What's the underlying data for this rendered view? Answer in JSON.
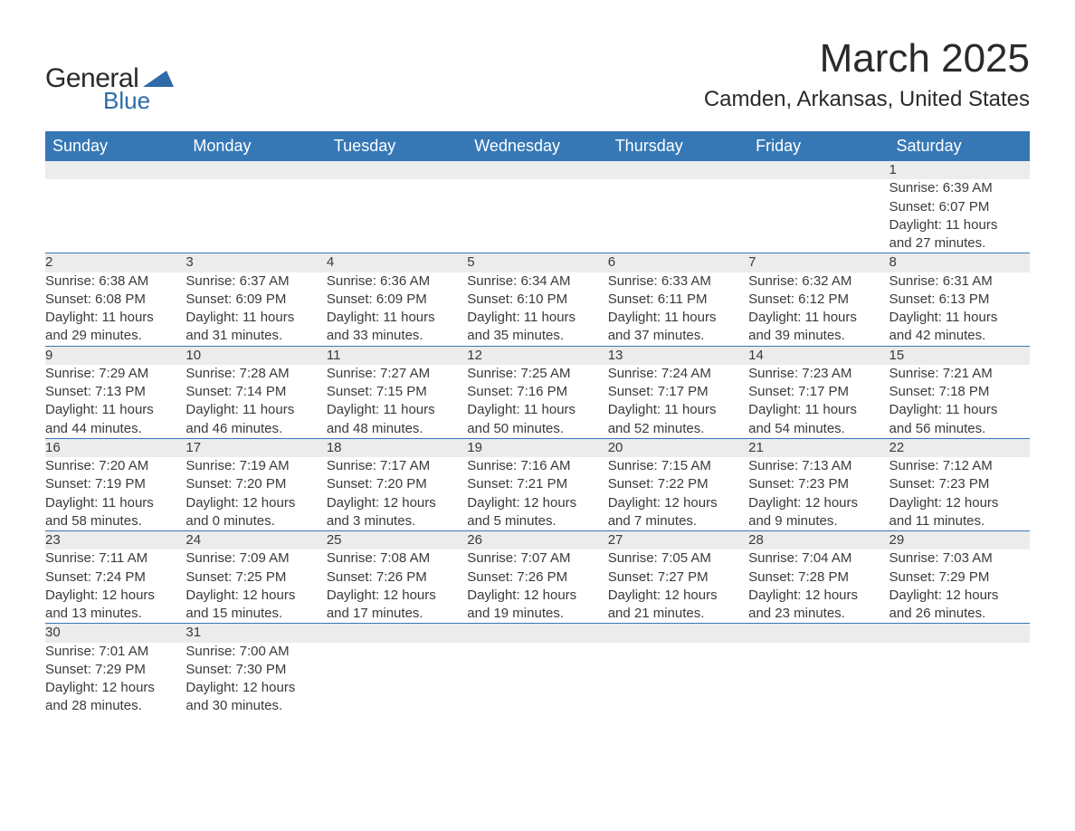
{
  "logo": {
    "text_general": "General",
    "text_blue": "Blue",
    "shape_color": "#2d6ca8"
  },
  "title": {
    "month": "March 2025",
    "location": "Camden, Arkansas, United States"
  },
  "header_bg": "#3678b6",
  "header_fg": "#ffffff",
  "row_divider": "#3678b6",
  "daynum_bg": "#ececec",
  "text_color": "#3a3a3a",
  "weekdays": [
    "Sunday",
    "Monday",
    "Tuesday",
    "Wednesday",
    "Thursday",
    "Friday",
    "Saturday"
  ],
  "weeks": [
    [
      null,
      null,
      null,
      null,
      null,
      null,
      {
        "n": "1",
        "sunrise": "6:39 AM",
        "sunset": "6:07 PM",
        "dl1": "11 hours",
        "dl2": "and 27 minutes."
      }
    ],
    [
      {
        "n": "2",
        "sunrise": "6:38 AM",
        "sunset": "6:08 PM",
        "dl1": "11 hours",
        "dl2": "and 29 minutes."
      },
      {
        "n": "3",
        "sunrise": "6:37 AM",
        "sunset": "6:09 PM",
        "dl1": "11 hours",
        "dl2": "and 31 minutes."
      },
      {
        "n": "4",
        "sunrise": "6:36 AM",
        "sunset": "6:09 PM",
        "dl1": "11 hours",
        "dl2": "and 33 minutes."
      },
      {
        "n": "5",
        "sunrise": "6:34 AM",
        "sunset": "6:10 PM",
        "dl1": "11 hours",
        "dl2": "and 35 minutes."
      },
      {
        "n": "6",
        "sunrise": "6:33 AM",
        "sunset": "6:11 PM",
        "dl1": "11 hours",
        "dl2": "and 37 minutes."
      },
      {
        "n": "7",
        "sunrise": "6:32 AM",
        "sunset": "6:12 PM",
        "dl1": "11 hours",
        "dl2": "and 39 minutes."
      },
      {
        "n": "8",
        "sunrise": "6:31 AM",
        "sunset": "6:13 PM",
        "dl1": "11 hours",
        "dl2": "and 42 minutes."
      }
    ],
    [
      {
        "n": "9",
        "sunrise": "7:29 AM",
        "sunset": "7:13 PM",
        "dl1": "11 hours",
        "dl2": "and 44 minutes."
      },
      {
        "n": "10",
        "sunrise": "7:28 AM",
        "sunset": "7:14 PM",
        "dl1": "11 hours",
        "dl2": "and 46 minutes."
      },
      {
        "n": "11",
        "sunrise": "7:27 AM",
        "sunset": "7:15 PM",
        "dl1": "11 hours",
        "dl2": "and 48 minutes."
      },
      {
        "n": "12",
        "sunrise": "7:25 AM",
        "sunset": "7:16 PM",
        "dl1": "11 hours",
        "dl2": "and 50 minutes."
      },
      {
        "n": "13",
        "sunrise": "7:24 AM",
        "sunset": "7:17 PM",
        "dl1": "11 hours",
        "dl2": "and 52 minutes."
      },
      {
        "n": "14",
        "sunrise": "7:23 AM",
        "sunset": "7:17 PM",
        "dl1": "11 hours",
        "dl2": "and 54 minutes."
      },
      {
        "n": "15",
        "sunrise": "7:21 AM",
        "sunset": "7:18 PM",
        "dl1": "11 hours",
        "dl2": "and 56 minutes."
      }
    ],
    [
      {
        "n": "16",
        "sunrise": "7:20 AM",
        "sunset": "7:19 PM",
        "dl1": "11 hours",
        "dl2": "and 58 minutes."
      },
      {
        "n": "17",
        "sunrise": "7:19 AM",
        "sunset": "7:20 PM",
        "dl1": "12 hours",
        "dl2": "and 0 minutes."
      },
      {
        "n": "18",
        "sunrise": "7:17 AM",
        "sunset": "7:20 PM",
        "dl1": "12 hours",
        "dl2": "and 3 minutes."
      },
      {
        "n": "19",
        "sunrise": "7:16 AM",
        "sunset": "7:21 PM",
        "dl1": "12 hours",
        "dl2": "and 5 minutes."
      },
      {
        "n": "20",
        "sunrise": "7:15 AM",
        "sunset": "7:22 PM",
        "dl1": "12 hours",
        "dl2": "and 7 minutes."
      },
      {
        "n": "21",
        "sunrise": "7:13 AM",
        "sunset": "7:23 PM",
        "dl1": "12 hours",
        "dl2": "and 9 minutes."
      },
      {
        "n": "22",
        "sunrise": "7:12 AM",
        "sunset": "7:23 PM",
        "dl1": "12 hours",
        "dl2": "and 11 minutes."
      }
    ],
    [
      {
        "n": "23",
        "sunrise": "7:11 AM",
        "sunset": "7:24 PM",
        "dl1": "12 hours",
        "dl2": "and 13 minutes."
      },
      {
        "n": "24",
        "sunrise": "7:09 AM",
        "sunset": "7:25 PM",
        "dl1": "12 hours",
        "dl2": "and 15 minutes."
      },
      {
        "n": "25",
        "sunrise": "7:08 AM",
        "sunset": "7:26 PM",
        "dl1": "12 hours",
        "dl2": "and 17 minutes."
      },
      {
        "n": "26",
        "sunrise": "7:07 AM",
        "sunset": "7:26 PM",
        "dl1": "12 hours",
        "dl2": "and 19 minutes."
      },
      {
        "n": "27",
        "sunrise": "7:05 AM",
        "sunset": "7:27 PM",
        "dl1": "12 hours",
        "dl2": "and 21 minutes."
      },
      {
        "n": "28",
        "sunrise": "7:04 AM",
        "sunset": "7:28 PM",
        "dl1": "12 hours",
        "dl2": "and 23 minutes."
      },
      {
        "n": "29",
        "sunrise": "7:03 AM",
        "sunset": "7:29 PM",
        "dl1": "12 hours",
        "dl2": "and 26 minutes."
      }
    ],
    [
      {
        "n": "30",
        "sunrise": "7:01 AM",
        "sunset": "7:29 PM",
        "dl1": "12 hours",
        "dl2": "and 28 minutes."
      },
      {
        "n": "31",
        "sunrise": "7:00 AM",
        "sunset": "7:30 PM",
        "dl1": "12 hours",
        "dl2": "and 30 minutes."
      },
      null,
      null,
      null,
      null,
      null
    ]
  ],
  "labels": {
    "sunrise": "Sunrise:",
    "sunset": "Sunset:",
    "daylight": "Daylight:"
  }
}
